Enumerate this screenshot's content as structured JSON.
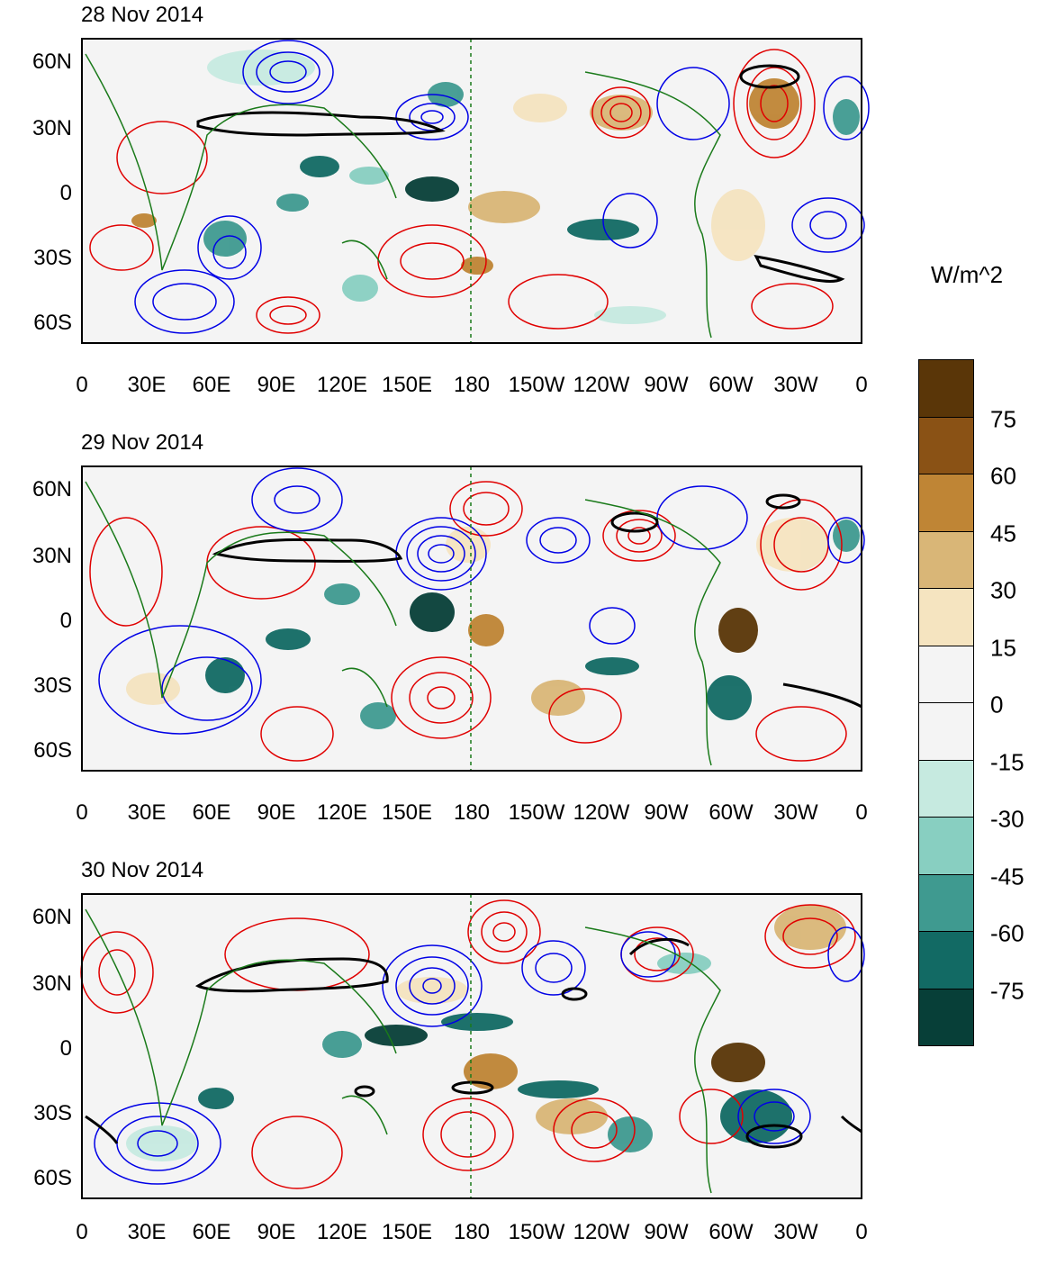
{
  "panels": [
    {
      "title": "28 Nov 2014"
    },
    {
      "title": "29 Nov 2014"
    },
    {
      "title": "30 Nov 2014"
    }
  ],
  "lat_labels": [
    "60N",
    "30N",
    "0",
    "30S",
    "60S"
  ],
  "lon_labels": [
    "0",
    "30E",
    "60E",
    "90E",
    "120E",
    "150E",
    "180",
    "150W",
    "120W",
    "90W",
    "60W",
    "30W",
    "0"
  ],
  "colorbar": {
    "units": "W/m^2",
    "labels": [
      "75",
      "60",
      "45",
      "30",
      "15",
      "0",
      "-15",
      "-30",
      "-45",
      "-60",
      "-75"
    ],
    "colors": [
      "#5a3608",
      "#8a5215",
      "#bf8535",
      "#d9b677",
      "#f5e4c0",
      "#f4f4f4",
      "#f4f4f4",
      "#c6eae0",
      "#88cfc1",
      "#3f9a90",
      "#126a64",
      "#073f38"
    ]
  },
  "legend_colors": {
    "positive_contour": "#e00000",
    "negative_contour": "#0000e6",
    "coastline": "#1a7a1a",
    "significance": "#000000"
  }
}
